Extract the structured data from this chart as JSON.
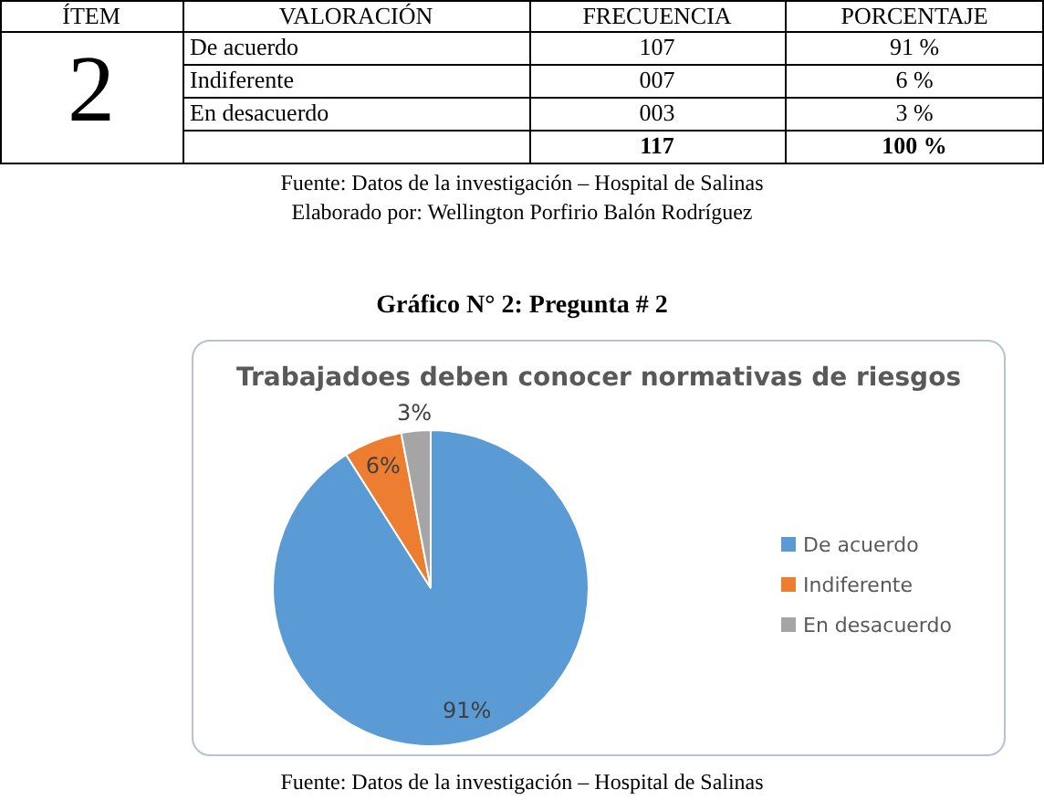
{
  "chart_data": [
    {
      "type": "other",
      "annotations": [
        "ÍTEM",
        "VALORACIÓN",
        "FRECUENCIA",
        "PORCENTAJE",
        "2",
        "De acuerdo",
        "107",
        "91 %",
        "Indiferente",
        "007",
        "6 %",
        "En desacuerdo",
        "003",
        "3 %",
        "117",
        "100 %",
        "Fuente: Datos de la investigación – Hospital de Salinas",
        "Elaborado por: Wellington Porfirio Balón Rodríguez"
      ]
    },
    {
      "type": "pie",
      "title": "Trabajadoes deben conocer normativas de riesgos",
      "categories": [
        "De acuerdo",
        "Indiferente",
        "En desacuerdo"
      ],
      "values": [
        91,
        6,
        3
      ],
      "colors": [
        "#5b9bd5",
        "#ed7d31",
        "#a5a5a5"
      ],
      "value_labels": [
        "91%",
        "6%",
        "3%"
      ],
      "legend": "right",
      "annotations": [
        "Gráfico N° 2: Pregunta # 2",
        "Fuente: Datos de la investigación – Hospital de Salinas"
      ]
    }
  ]
}
